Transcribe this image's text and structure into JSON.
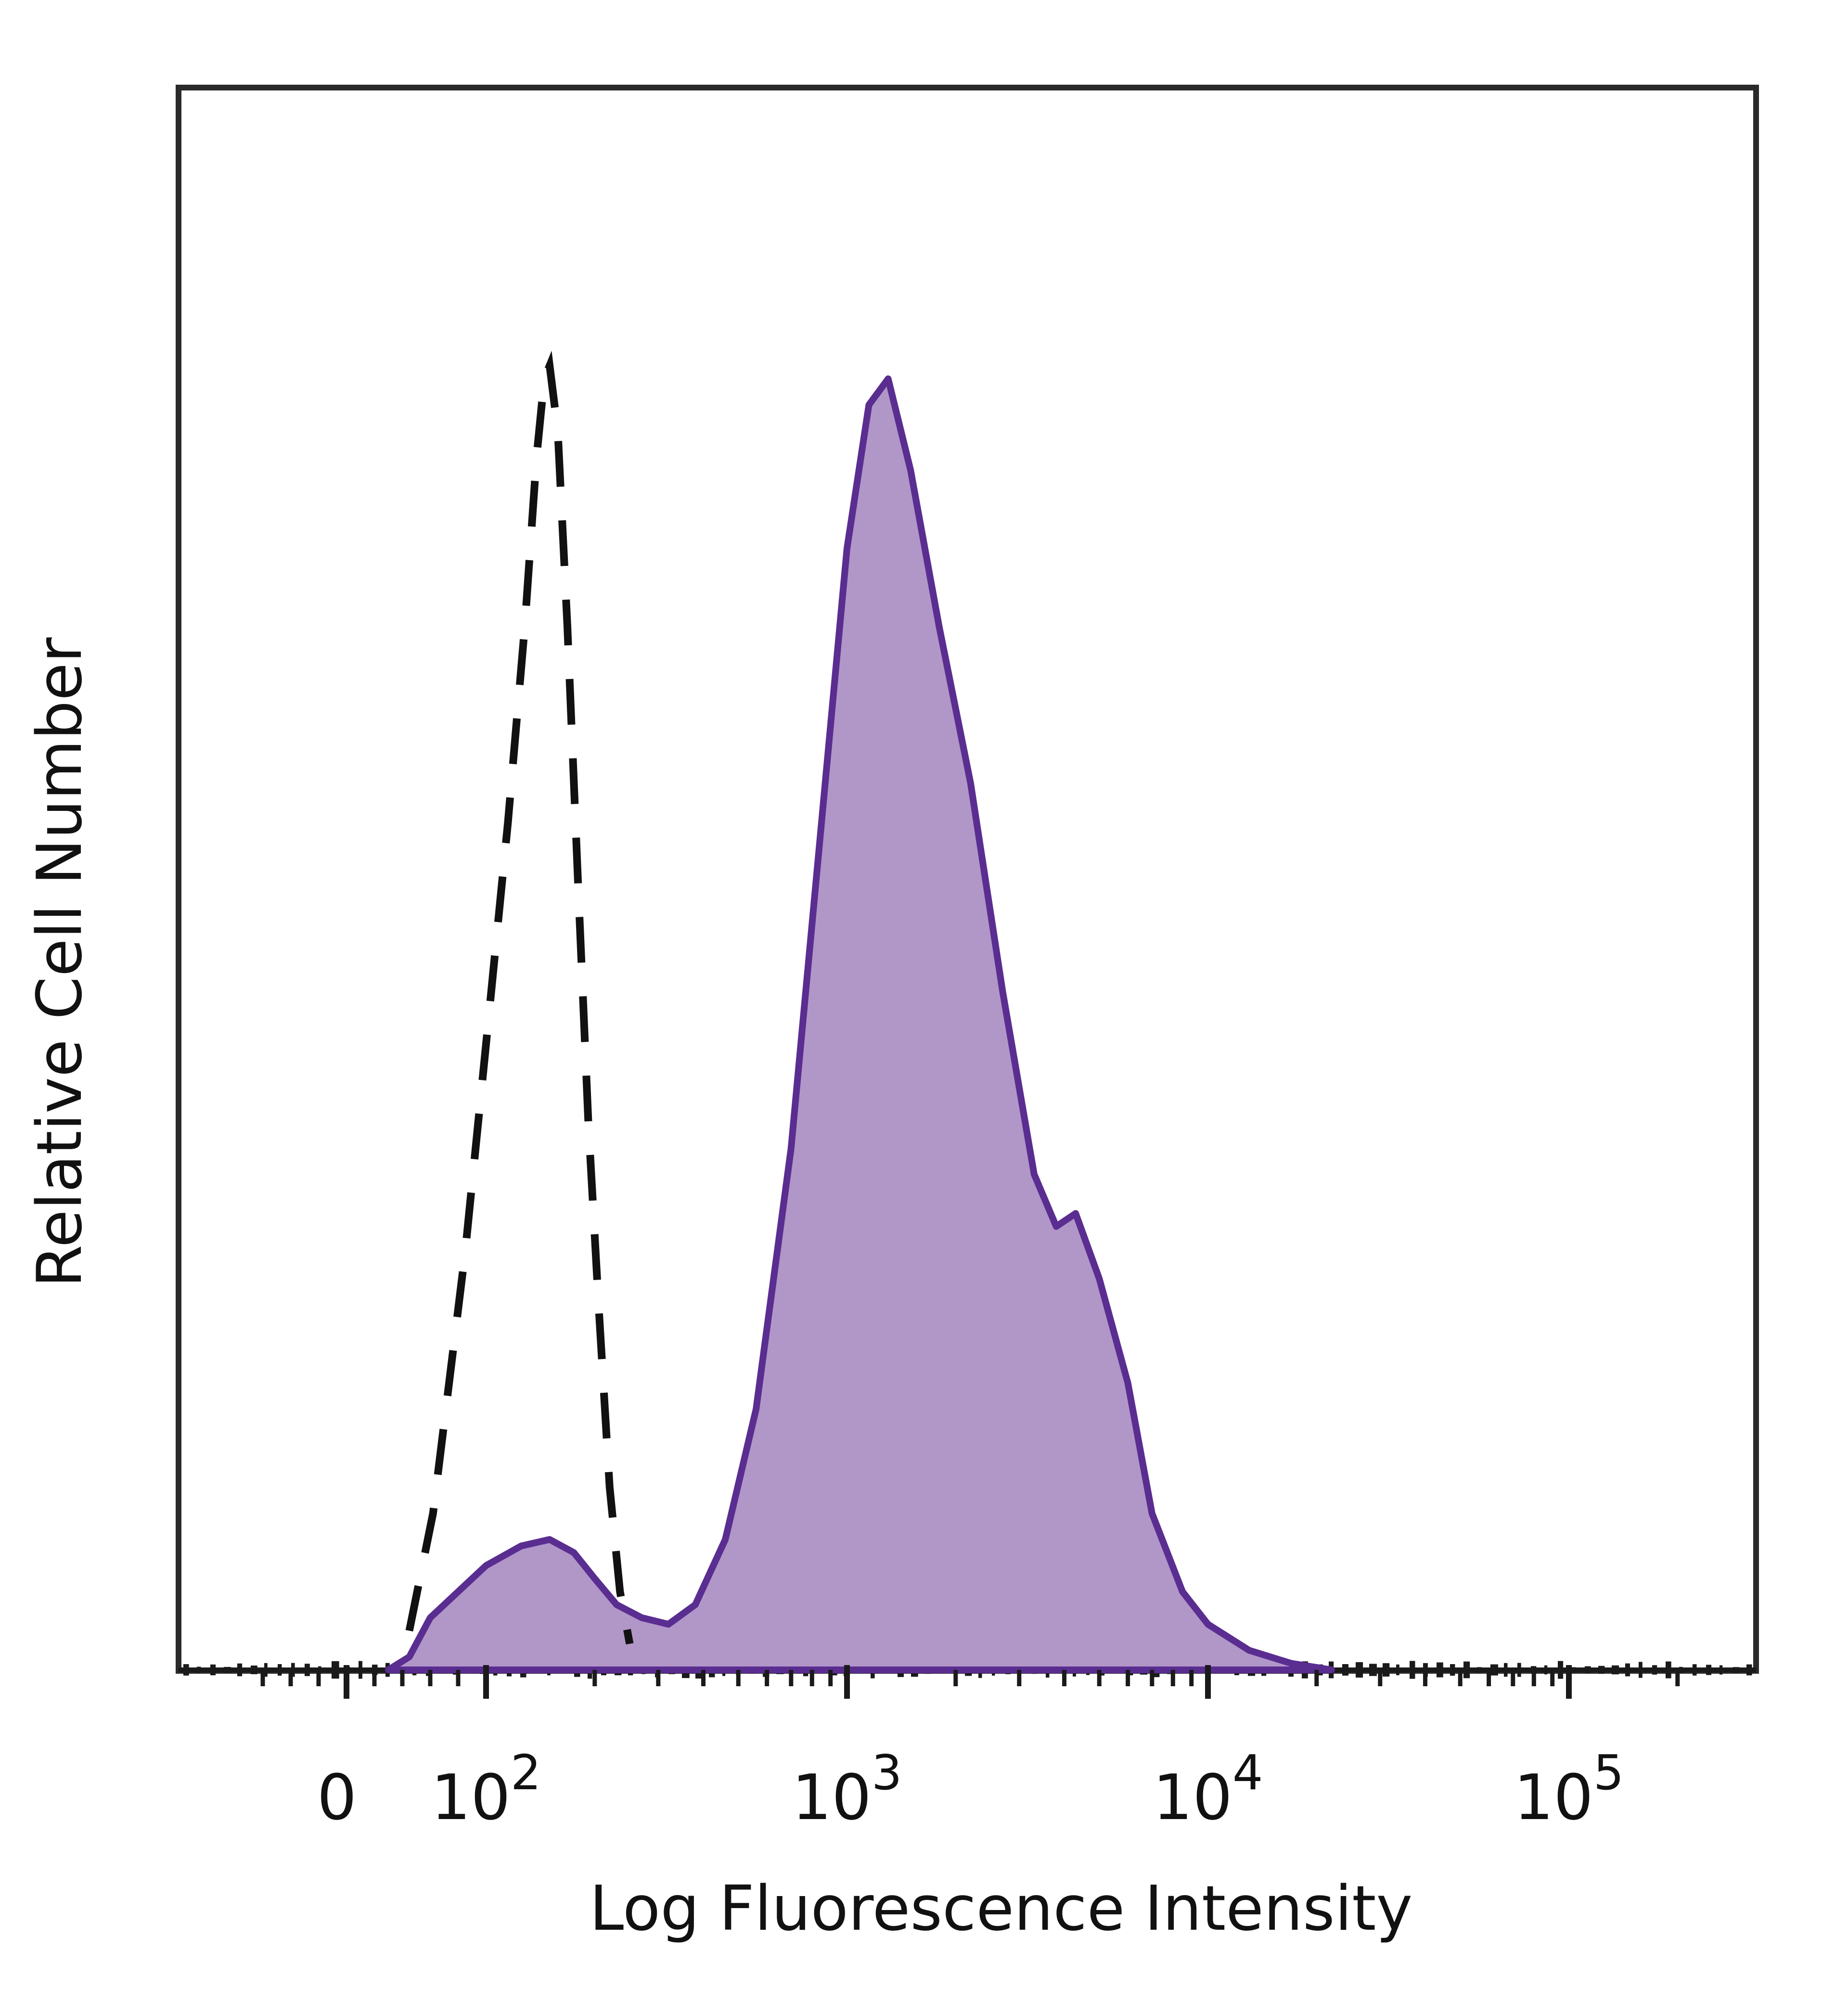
{
  "chart_data": {
    "type": "area",
    "xlabel": "Log Fluorescence Intensity",
    "ylabel": "Relative Cell Number",
    "x_scale": "biexponential",
    "xlim": [
      -80,
      200000
    ],
    "ylim": [
      0,
      1.1
    ],
    "x_ticks": [
      {
        "value": 0,
        "base": "0",
        "exp": ""
      },
      {
        "value": 100,
        "base": "10",
        "exp": "2"
      },
      {
        "value": 1000,
        "base": "10",
        "exp": "3"
      },
      {
        "value": 10000,
        "base": "10",
        "exp": "4"
      },
      {
        "value": 100000,
        "base": "10",
        "exp": "5"
      }
    ],
    "grid": false,
    "legend": "none",
    "series": [
      {
        "style": "dashed-outline",
        "color": "#111111",
        "points": [
          [
            45,
            0.03
          ],
          [
            62,
            0.12
          ],
          [
            85,
            0.32
          ],
          [
            100,
            0.48
          ],
          [
            115,
            0.65
          ],
          [
            128,
            0.8
          ],
          [
            138,
            0.93
          ],
          [
            145,
            0.99
          ],
          [
            150,
            1.0
          ],
          [
            158,
            0.95
          ],
          [
            168,
            0.8
          ],
          [
            180,
            0.6
          ],
          [
            192,
            0.42
          ],
          [
            205,
            0.28
          ],
          [
            220,
            0.14
          ],
          [
            235,
            0.06
          ],
          [
            250,
            0.02
          ]
        ]
      },
      {
        "style": "filled",
        "color": "#5a2d91",
        "fill": "#b196c8",
        "points": [
          [
            30,
            0.0
          ],
          [
            45,
            0.01
          ],
          [
            60,
            0.04
          ],
          [
            80,
            0.06
          ],
          [
            100,
            0.08
          ],
          [
            125,
            0.095
          ],
          [
            150,
            0.1
          ],
          [
            175,
            0.09
          ],
          [
            200,
            0.07
          ],
          [
            230,
            0.05
          ],
          [
            270,
            0.04
          ],
          [
            320,
            0.035
          ],
          [
            380,
            0.05
          ],
          [
            460,
            0.1
          ],
          [
            560,
            0.2
          ],
          [
            700,
            0.4
          ],
          [
            850,
            0.65
          ],
          [
            1000,
            0.86
          ],
          [
            1150,
            0.97
          ],
          [
            1300,
            0.99
          ],
          [
            1500,
            0.92
          ],
          [
            1800,
            0.8
          ],
          [
            2200,
            0.68
          ],
          [
            2700,
            0.52
          ],
          [
            3300,
            0.38
          ],
          [
            3800,
            0.34
          ],
          [
            4300,
            0.35
          ],
          [
            5000,
            0.3
          ],
          [
            6000,
            0.22
          ],
          [
            7000,
            0.12
          ],
          [
            8500,
            0.06
          ],
          [
            10000,
            0.035
          ],
          [
            13000,
            0.015
          ],
          [
            17000,
            0.005
          ],
          [
            22000,
            0.0
          ]
        ]
      }
    ]
  }
}
